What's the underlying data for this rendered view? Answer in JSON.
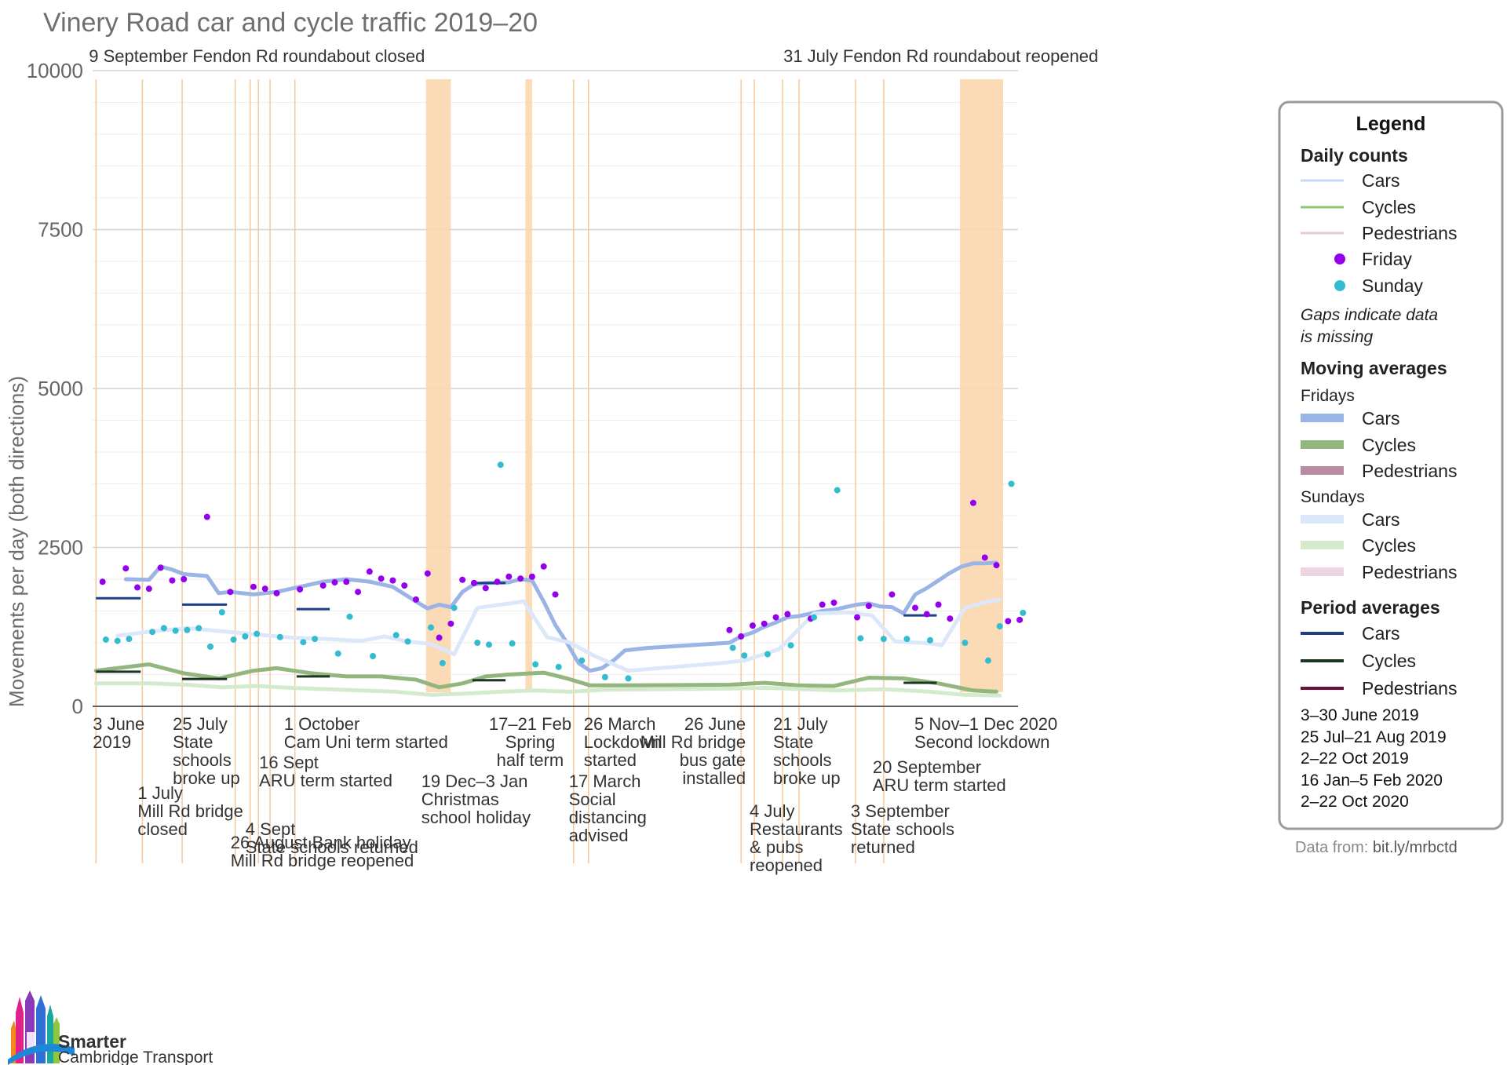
{
  "chart_data": {
    "type": "line",
    "title": "Vinery Road car and cycle traffic 2019–20",
    "ylabel": "Movements per day (both directions)",
    "ylim": [
      0,
      10000
    ],
    "yticks": [
      0,
      2500,
      5000,
      7500,
      10000
    ],
    "xlim": [
      "2019-06-01",
      "2020-12-10"
    ],
    "grid": true,
    "legend_position": "right",
    "colors": {
      "cars_daily": "#c6daf5",
      "cycles_daily": "#8cc46e",
      "pedestrians_daily": "#e8c9d9",
      "friday_dot": "#9400ee",
      "sunday_dot": "#33bcd0",
      "cars_friday_avg": "#9bb4e6",
      "cycles_friday_avg": "#93b57e",
      "pedestrians_friday_avg": "#b88ba2",
      "cars_sunday_avg": "#dce8fa",
      "cycles_sunday_avg": "#d3ebcc",
      "pedestrians_sunday_avg": "#ecd4e2",
      "period_cars": "#1c3f8c",
      "period_cycles": "#1c3420",
      "period_pedestrians": "#6b0f3c",
      "event_line": "#f7c79a",
      "shade": "#fbd6ae"
    },
    "shaded_periods": [
      {
        "start": "2019-12-19",
        "end": "2020-01-03"
      },
      {
        "start": "2020-02-17",
        "end": "2020-02-21"
      },
      {
        "start": "2020-11-05",
        "end": "2020-12-01"
      }
    ],
    "event_lines": [
      "2019-06-03",
      "2019-07-01",
      "2019-07-25",
      "2019-08-26",
      "2019-09-04",
      "2019-09-09",
      "2019-09-16",
      "2019-10-01",
      "2020-03-17",
      "2020-03-26",
      "2020-06-26",
      "2020-07-04",
      "2020-07-21",
      "2020-07-31",
      "2020-09-03",
      "2020-09-20"
    ],
    "annotations": [
      {
        "date": "2019-09-09",
        "row": "top",
        "lines": [
          "9 September Fendon Rd roundabout closed"
        ]
      },
      {
        "date": "2020-07-31",
        "row": "top",
        "lines": [
          "31 July Fendon Rd roundabout reopened"
        ]
      },
      {
        "date": "2019-06-03",
        "lines": [
          "3 June",
          "2019"
        ]
      },
      {
        "date": "2019-07-01",
        "lines": [
          "1 July",
          "Mill Rd bridge",
          "closed"
        ]
      },
      {
        "date": "2019-07-25",
        "lines": [
          "25 July",
          "State",
          "schools",
          "broke up"
        ]
      },
      {
        "date": "2019-08-26",
        "lines": [
          "26 August Bank holiday",
          "Mill Rd bridge reopened"
        ]
      },
      {
        "date": "2019-09-04",
        "lines": [
          "4 Sept",
          "State schools returned"
        ]
      },
      {
        "date": "2019-09-16",
        "lines": [
          "16 Sept",
          "ARU term started"
        ]
      },
      {
        "date": "2019-10-01",
        "lines": [
          "1 October",
          "Cam Uni term started"
        ]
      },
      {
        "date": "2019-12-19",
        "lines": [
          "19 Dec–3 Jan",
          "Christmas",
          "school holiday"
        ]
      },
      {
        "date": "2020-02-17",
        "lines": [
          "17–21 Feb",
          "Spring",
          "half term"
        ]
      },
      {
        "date": "2020-03-17",
        "lines": [
          "17 March",
          "Social",
          "distancing",
          "advised"
        ]
      },
      {
        "date": "2020-03-26",
        "lines": [
          "26 March",
          "Lockdown",
          "started"
        ]
      },
      {
        "date": "2020-06-26",
        "lines": [
          "26 June",
          "Mill Rd bridge",
          "bus  gate",
          "installed"
        ]
      },
      {
        "date": "2020-07-04",
        "lines": [
          "4 July",
          "Restaurants",
          "& pubs",
          "reopened"
        ]
      },
      {
        "date": "2020-07-21",
        "lines": [
          "21 July",
          "State",
          "schools",
          "broke up"
        ]
      },
      {
        "date": "2020-09-03",
        "lines": [
          "3 September",
          "State schools",
          "returned"
        ]
      },
      {
        "date": "2020-09-20",
        "lines": [
          "20 September",
          "ARU term started"
        ]
      },
      {
        "date": "2020-11-05",
        "lines": [
          "5 Nov–1 Dec 2020",
          "Second lockdown"
        ]
      }
    ],
    "series": [
      {
        "name": "Cars",
        "group": "Fridays",
        "kind": "moving_average",
        "x": [
          "2019-06-21",
          "2019-07-05",
          "2019-07-12",
          "2019-07-19",
          "2019-07-26",
          "2019-08-09",
          "2019-08-16",
          "2019-08-23",
          "2019-09-06",
          "2019-09-20",
          "2019-10-04",
          "2019-10-18",
          "2019-11-01",
          "2019-11-15",
          "2019-11-29",
          "2019-12-13",
          "2019-12-20",
          "2019-12-27",
          "2020-01-03",
          "2020-01-10",
          "2020-01-17",
          "2020-01-24",
          "2020-02-07",
          "2020-02-14",
          "2020-02-21",
          "2020-02-28",
          "2020-03-06",
          "2020-03-13",
          "2020-03-20",
          "2020-03-27",
          "2020-04-03",
          "2020-04-10",
          "2020-04-17",
          "2020-04-24",
          "2020-05-01",
          "2020-06-19",
          "2020-06-26",
          "2020-07-03",
          "2020-07-10",
          "2020-07-17",
          "2020-07-24",
          "2020-07-31",
          "2020-08-07",
          "2020-08-14",
          "2020-08-21",
          "2020-08-28",
          "2020-09-04",
          "2020-09-11",
          "2020-09-18",
          "2020-09-25",
          "2020-10-02",
          "2020-10-09",
          "2020-10-16",
          "2020-10-23",
          "2020-10-30",
          "2020-11-06",
          "2020-11-13",
          "2020-11-20",
          "2020-11-27"
        ],
        "values": [
          2000,
          1990,
          2200,
          2150,
          2080,
          2050,
          1780,
          1800,
          1760,
          1800,
          1880,
          1960,
          2000,
          1960,
          1880,
          1650,
          1540,
          1600,
          1560,
          1800,
          1920,
          1940,
          1950,
          2000,
          1980,
          1650,
          1280,
          1000,
          680,
          560,
          600,
          720,
          880,
          900,
          920,
          1000,
          1100,
          1160,
          1250,
          1320,
          1400,
          1420,
          1460,
          1500,
          1520,
          1560,
          1600,
          1620,
          1570,
          1560,
          1460,
          1760,
          1860,
          1980,
          2100,
          2200,
          2250,
          2250,
          2260
        ]
      },
      {
        "name": "Cars",
        "group": "Sundays",
        "kind": "moving_average",
        "x": [
          "2019-06-16",
          "2019-07-07",
          "2019-07-28",
          "2019-08-18",
          "2019-09-08",
          "2019-09-29",
          "2019-10-20",
          "2019-11-10",
          "2019-11-24",
          "2019-12-08",
          "2019-12-22",
          "2020-01-05",
          "2020-01-19",
          "2020-02-02",
          "2020-02-16",
          "2020-03-01",
          "2020-03-15",
          "2020-03-29",
          "2020-04-19",
          "2020-06-14",
          "2020-06-28",
          "2020-07-19",
          "2020-08-09",
          "2020-08-30",
          "2020-09-13",
          "2020-09-27",
          "2020-10-18",
          "2020-10-25",
          "2020-11-08",
          "2020-11-22",
          "2020-11-29"
        ],
        "values": [
          1110,
          1180,
          1230,
          1180,
          1130,
          1080,
          1060,
          1030,
          1100,
          1020,
          980,
          820,
          1550,
          1600,
          1650,
          1090,
          1000,
          800,
          560,
          680,
          720,
          900,
          1460,
          1480,
          1430,
          1020,
          990,
          960,
          1550,
          1650,
          1680
        ]
      },
      {
        "name": "Cycles",
        "group": "Fridays",
        "kind": "moving_average",
        "x": [
          "2019-06-03",
          "2019-07-05",
          "2019-07-26",
          "2019-08-16",
          "2019-09-06",
          "2019-09-20",
          "2019-10-11",
          "2019-11-01",
          "2019-11-22",
          "2019-12-13",
          "2019-12-27",
          "2020-01-10",
          "2020-01-24",
          "2020-02-07",
          "2020-02-28",
          "2020-03-13",
          "2020-03-27",
          "2020-04-17",
          "2020-06-19",
          "2020-07-10",
          "2020-07-31",
          "2020-08-21",
          "2020-09-11",
          "2020-10-02",
          "2020-10-23",
          "2020-11-13",
          "2020-11-27"
        ],
        "values": [
          560,
          660,
          520,
          440,
          560,
          600,
          520,
          470,
          470,
          420,
          300,
          360,
          470,
          500,
          530,
          440,
          330,
          330,
          340,
          370,
          330,
          320,
          450,
          440,
          360,
          250,
          230
        ]
      },
      {
        "name": "Cycles",
        "group": "Sundays",
        "kind": "moving_average",
        "x": [
          "2019-06-03",
          "2019-07-07",
          "2019-07-28",
          "2019-08-18",
          "2019-09-08",
          "2019-09-29",
          "2019-10-20",
          "2019-11-10",
          "2019-12-01",
          "2019-12-22",
          "2020-01-12",
          "2020-02-02",
          "2020-02-23",
          "2020-03-15",
          "2020-04-05",
          "2020-06-21",
          "2020-07-12",
          "2020-08-02",
          "2020-08-23",
          "2020-09-20",
          "2020-10-18",
          "2020-11-08",
          "2020-11-29"
        ],
        "values": [
          360,
          360,
          340,
          300,
          320,
          290,
          270,
          250,
          230,
          180,
          200,
          230,
          250,
          230,
          260,
          280,
          290,
          270,
          250,
          270,
          230,
          180,
          170
        ]
      },
      {
        "name": "Period averages Cars",
        "kind": "period_average",
        "segments": [
          {
            "start": "2019-06-03",
            "end": "2019-06-30",
            "value": 1700
          },
          {
            "start": "2019-07-25",
            "end": "2019-08-21",
            "value": 1600
          },
          {
            "start": "2019-10-02",
            "end": "2019-10-22",
            "value": 1530
          },
          {
            "start": "2020-01-16",
            "end": "2020-02-05",
            "value": 1940
          },
          {
            "start": "2020-10-02",
            "end": "2020-10-22",
            "value": 1430
          }
        ]
      },
      {
        "name": "Period averages Cycles",
        "kind": "period_average",
        "segments": [
          {
            "start": "2019-06-03",
            "end": "2019-06-30",
            "value": 545
          },
          {
            "start": "2019-07-25",
            "end": "2019-08-21",
            "value": 430
          },
          {
            "start": "2019-10-02",
            "end": "2019-10-22",
            "value": 470
          },
          {
            "start": "2020-01-16",
            "end": "2020-02-05",
            "value": 410
          },
          {
            "start": "2020-10-02",
            "end": "2020-10-22",
            "value": 370
          }
        ]
      },
      {
        "name": "Friday",
        "kind": "daily_points",
        "x": [
          "2019-06-07",
          "2019-06-21",
          "2019-06-28",
          "2019-07-05",
          "2019-07-12",
          "2019-07-19",
          "2019-07-26",
          "2019-08-09",
          "2019-08-23",
          "2019-09-06",
          "2019-09-13",
          "2019-09-20",
          "2019-10-04",
          "2019-10-18",
          "2019-10-25",
          "2019-11-01",
          "2019-11-08",
          "2019-11-15",
          "2019-11-22",
          "2019-11-29",
          "2019-12-06",
          "2019-12-13",
          "2019-12-20",
          "2019-12-27",
          "2020-01-03",
          "2020-01-10",
          "2020-01-17",
          "2020-01-24",
          "2020-01-31",
          "2020-02-07",
          "2020-02-14",
          "2020-02-21",
          "2020-02-28",
          "2020-03-06",
          "2020-06-19",
          "2020-06-26",
          "2020-07-03",
          "2020-07-10",
          "2020-07-17",
          "2020-07-24",
          "2020-08-07",
          "2020-08-14",
          "2020-08-21",
          "2020-09-04",
          "2020-09-11",
          "2020-09-25",
          "2020-10-09",
          "2020-10-16",
          "2020-10-23",
          "2020-10-30",
          "2020-11-13",
          "2020-11-20",
          "2020-11-27",
          "2020-12-04",
          "2020-12-11"
        ],
        "values": [
          1960,
          2170,
          1870,
          1850,
          2180,
          1980,
          2000,
          2980,
          1800,
          1880,
          1850,
          1780,
          1840,
          1900,
          1950,
          1960,
          1800,
          2120,
          2010,
          1980,
          1900,
          1680,
          2090,
          1080,
          1300,
          1990,
          1940,
          1860,
          1960,
          2040,
          2010,
          2040,
          2200,
          1760,
          1200,
          1100,
          1270,
          1300,
          1400,
          1450,
          1380,
          1600,
          1630,
          1400,
          1580,
          1760,
          1550,
          1450,
          1600,
          1380,
          3200,
          2340,
          2220,
          1340,
          1360
        ]
      },
      {
        "name": "Sunday",
        "kind": "daily_points",
        "x": [
          "2019-06-09",
          "2019-06-16",
          "2019-06-23",
          "2019-07-07",
          "2019-07-14",
          "2019-07-21",
          "2019-07-28",
          "2019-08-04",
          "2019-08-11",
          "2019-08-18",
          "2019-08-25",
          "2019-09-01",
          "2019-09-08",
          "2019-09-22",
          "2019-10-06",
          "2019-10-13",
          "2019-10-27",
          "2019-11-03",
          "2019-11-17",
          "2019-12-01",
          "2019-12-08",
          "2019-12-22",
          "2019-12-29",
          "2020-01-05",
          "2020-01-19",
          "2020-01-26",
          "2020-02-02",
          "2020-02-09",
          "2020-02-23",
          "2020-03-08",
          "2020-03-22",
          "2020-04-05",
          "2020-04-19",
          "2020-06-21",
          "2020-06-28",
          "2020-07-12",
          "2020-07-26",
          "2020-08-09",
          "2020-08-23",
          "2020-09-06",
          "2020-09-20",
          "2020-10-04",
          "2020-10-18",
          "2020-11-08",
          "2020-11-22",
          "2020-11-29",
          "2020-12-06",
          "2020-12-13"
        ],
        "values": [
          1050,
          1030,
          1060,
          1170,
          1230,
          1190,
          1200,
          1230,
          940,
          1480,
          1050,
          1100,
          1140,
          1090,
          1010,
          1060,
          830,
          1410,
          790,
          1120,
          1020,
          1240,
          680,
          1550,
          1000,
          970,
          3800,
          990,
          660,
          620,
          720,
          460,
          440,
          920,
          800,
          820,
          960,
          1400,
          3400,
          1070,
          1060,
          1060,
          1040,
          1000,
          720,
          1260,
          3500,
          1470
        ]
      }
    ]
  },
  "legend": {
    "title": "Legend",
    "daily_heading": "Daily counts",
    "daily_items": [
      "Cars",
      "Cycles",
      "Pedestrians",
      "Friday",
      "Sunday"
    ],
    "note_lines": [
      "Gaps indicate data",
      "is missing"
    ],
    "moving_heading": "Moving averages",
    "fridays_label": "Fridays",
    "fridays_items": [
      "Cars",
      "Cycles",
      "Pedestrians"
    ],
    "sundays_label": "Sundays",
    "sundays_items": [
      "Cars",
      "Cycles",
      "Pedestrians"
    ],
    "period_heading": "Period averages",
    "period_items": [
      "Cars",
      "Cycles",
      "Pedestrians"
    ],
    "period_ranges": [
      "3–30 June 2019",
      "25 Jul–21 Aug 2019",
      "2–22 Oct 2019",
      "16 Jan–5 Feb 2020",
      "2–22 Oct 2020"
    ]
  },
  "source": {
    "prefix": "Data from: ",
    "link": "bit.ly/mrbctd"
  },
  "logo": {
    "line1": "Smarter",
    "line2": "Cambridge Transport"
  }
}
